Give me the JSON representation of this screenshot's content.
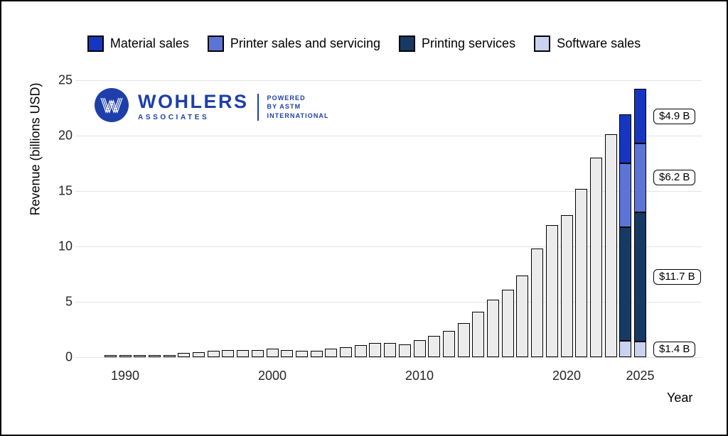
{
  "page": {
    "background": "#ffffff",
    "frame_color": "#000000"
  },
  "logo": {
    "brand": "WOHLERS",
    "sub_brand": "ASSOCIATES",
    "tagline_lines": [
      "POWERED",
      "BY ASTM",
      "INTERNATIONAL"
    ],
    "color": "#1e3fa9",
    "monogram": "W"
  },
  "chart_data": {
    "type": "bar",
    "stacked": true,
    "title": "",
    "xlabel": "Year",
    "ylabel": "Revenue (billions USD)",
    "ylim": [
      0,
      25
    ],
    "yticks": [
      0,
      5,
      10,
      15,
      20,
      25
    ],
    "xtick_labels": [
      1990,
      2000,
      2010,
      2020,
      2025
    ],
    "grid": "horizontal-light-gray",
    "legend_position": "top-center",
    "default_bar_color": "#ebebeb",
    "bar_edge_color": "#000000",
    "series": [
      {
        "key": "material_sales",
        "label": "Material sales",
        "color": "#1636c1"
      },
      {
        "key": "printer_sales_and_servicing",
        "label": "Printer sales and servicing",
        "color": "#5d74d7"
      },
      {
        "key": "printing_services",
        "label": "Printing services",
        "color": "#173a64"
      },
      {
        "key": "software_sales",
        "label": "Software sales",
        "color": "#c9d3f0"
      }
    ],
    "stack_order": [
      "software_sales",
      "printing_services",
      "printer_sales_and_servicing",
      "material_sales"
    ],
    "bars": [
      {
        "year": 1989,
        "total": 0.1
      },
      {
        "year": 1990,
        "total": 0.12
      },
      {
        "year": 1991,
        "total": 0.13
      },
      {
        "year": 1992,
        "total": 0.15
      },
      {
        "year": 1993,
        "total": 0.2
      },
      {
        "year": 1994,
        "total": 0.4
      },
      {
        "year": 1995,
        "total": 0.45
      },
      {
        "year": 1996,
        "total": 0.55
      },
      {
        "year": 1997,
        "total": 0.65
      },
      {
        "year": 1998,
        "total": 0.65
      },
      {
        "year": 1999,
        "total": 0.65
      },
      {
        "year": 2000,
        "total": 0.75
      },
      {
        "year": 2001,
        "total": 0.65
      },
      {
        "year": 2002,
        "total": 0.6
      },
      {
        "year": 2003,
        "total": 0.55
      },
      {
        "year": 2004,
        "total": 0.75
      },
      {
        "year": 2005,
        "total": 0.9
      },
      {
        "year": 2006,
        "total": 1.1
      },
      {
        "year": 2007,
        "total": 1.3
      },
      {
        "year": 2008,
        "total": 1.3
      },
      {
        "year": 2009,
        "total": 1.15
      },
      {
        "year": 2010,
        "total": 1.55
      },
      {
        "year": 2011,
        "total": 1.9
      },
      {
        "year": 2012,
        "total": 2.4
      },
      {
        "year": 2013,
        "total": 3.05
      },
      {
        "year": 2014,
        "total": 4.1
      },
      {
        "year": 2015,
        "total": 5.2
      },
      {
        "year": 2016,
        "total": 6.1
      },
      {
        "year": 2017,
        "total": 7.35
      },
      {
        "year": 2018,
        "total": 9.8
      },
      {
        "year": 2019,
        "total": 11.9
      },
      {
        "year": 2020,
        "total": 12.8
      },
      {
        "year": 2021,
        "total": 15.2
      },
      {
        "year": 2022,
        "total": 18.0
      },
      {
        "year": 2023,
        "total": 20.1
      },
      {
        "year": 2024,
        "segments": {
          "software_sales": 1.5,
          "printing_services": 10.2,
          "printer_sales_and_servicing": 5.8,
          "material_sales": 4.4
        }
      },
      {
        "year": 2025,
        "segments": {
          "software_sales": 1.4,
          "printing_services": 11.7,
          "printer_sales_and_servicing": 6.2,
          "material_sales": 4.9
        }
      }
    ],
    "annotations": [
      {
        "text": "$4.9 B",
        "series": "material_sales",
        "year": 2025,
        "at_value": 21.75
      },
      {
        "text": "$6.2 B",
        "series": "printer_sales_and_servicing",
        "year": 2025,
        "at_value": 16.2
      },
      {
        "text": "$11.7 B",
        "series": "printing_services",
        "year": 2025,
        "at_value": 7.25
      },
      {
        "text": "$1.4 B",
        "series": "software_sales",
        "year": 2025,
        "at_value": 0.7
      }
    ]
  }
}
